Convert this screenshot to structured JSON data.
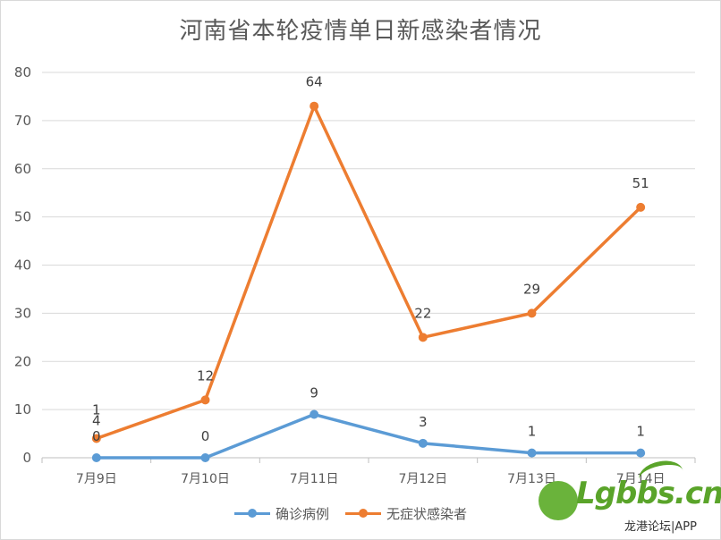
{
  "chart_data": {
    "type": "line",
    "title": "河南省本轮疫情单日新感染者情况",
    "categories": [
      "7月9日",
      "7月10日",
      "7月11日",
      "7月12日",
      "7月13日",
      "7月14日"
    ],
    "ylim": [
      0,
      80
    ],
    "yticks": [
      "0",
      "10",
      "20",
      "30",
      "40",
      "50",
      "60",
      "70",
      "80"
    ],
    "grid": true,
    "legend": "bottom",
    "series": [
      {
        "name": "确诊病例",
        "color": "#5b9bd5",
        "values": [
          0,
          0,
          9,
          3,
          1,
          1
        ],
        "labels": [
          "0",
          "0",
          "9",
          "3",
          "1",
          "1"
        ]
      },
      {
        "name": "无症状感染者",
        "color": "#ed7d31",
        "values": [
          4,
          12,
          73,
          25,
          30,
          52
        ],
        "labels": [
          "1\n4",
          "12",
          "64",
          "22",
          "29",
          "51"
        ]
      }
    ]
  },
  "watermark": {
    "brand": "Lgbbs.cn",
    "tagline": "龙港论坛|APP",
    "color": "#5aa42a"
  }
}
